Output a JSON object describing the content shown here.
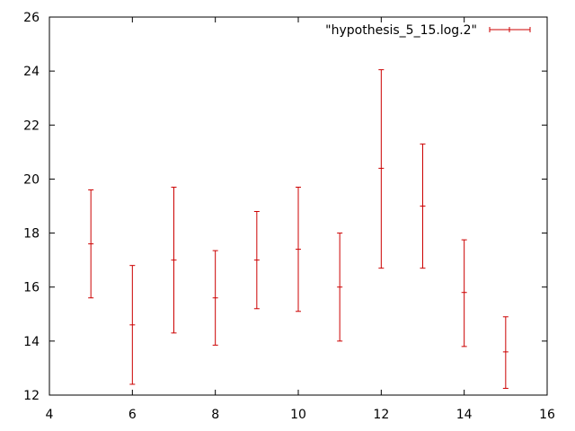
{
  "chart_data": {
    "type": "errorbar",
    "title": "",
    "xlabel": "",
    "ylabel": "",
    "xlim": [
      4,
      16
    ],
    "ylim": [
      12,
      26
    ],
    "xticks": [
      4,
      6,
      8,
      10,
      12,
      14,
      16
    ],
    "yticks": [
      12,
      14,
      16,
      18,
      20,
      22,
      24,
      26
    ],
    "grid": false,
    "legend_position": "top-right",
    "series": [
      {
        "name": "\"hypothesis_5_15.log.2\"",
        "color": "#cc0000",
        "points": [
          {
            "x": 5,
            "y": 17.6,
            "ylow": 15.6,
            "yhigh": 19.6
          },
          {
            "x": 6,
            "y": 14.6,
            "ylow": 12.4,
            "yhigh": 16.8
          },
          {
            "x": 7,
            "y": 17.0,
            "ylow": 14.3,
            "yhigh": 19.7
          },
          {
            "x": 8,
            "y": 15.6,
            "ylow": 13.85,
            "yhigh": 17.35
          },
          {
            "x": 9,
            "y": 17.0,
            "ylow": 15.2,
            "yhigh": 18.8
          },
          {
            "x": 10,
            "y": 17.4,
            "ylow": 15.1,
            "yhigh": 19.7
          },
          {
            "x": 11,
            "y": 16.0,
            "ylow": 14.0,
            "yhigh": 18.0
          },
          {
            "x": 12,
            "y": 20.4,
            "ylow": 16.7,
            "yhigh": 24.05
          },
          {
            "x": 13,
            "y": 19.0,
            "ylow": 16.7,
            "yhigh": 21.3
          },
          {
            "x": 14,
            "y": 15.8,
            "ylow": 13.8,
            "yhigh": 17.75
          },
          {
            "x": 15,
            "y": 13.6,
            "ylow": 12.25,
            "yhigh": 14.9
          }
        ]
      }
    ]
  }
}
